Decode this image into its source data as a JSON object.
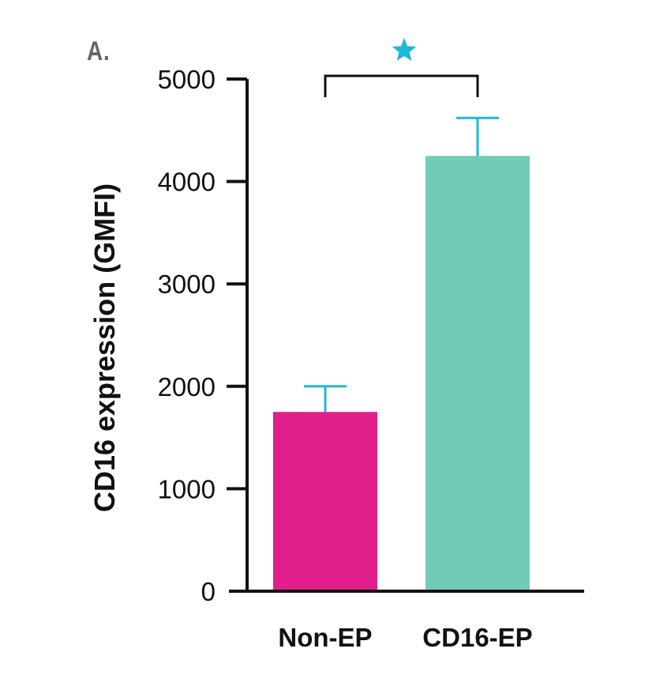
{
  "panel_label": "A.",
  "chart_data": {
    "type": "bar",
    "title": "",
    "xlabel": "",
    "ylabel": "CD16 expression (GMFI)",
    "categories": [
      "Non-EP",
      "CD16-EP"
    ],
    "values": [
      1750,
      4250
    ],
    "error_upper": [
      2000,
      4620
    ],
    "ylim": [
      0,
      5000
    ],
    "yticks": [
      0,
      1000,
      2000,
      3000,
      4000,
      5000
    ],
    "ytick_labels": [
      "0",
      "1000",
      "2000",
      "3000",
      "4000",
      "5000"
    ],
    "colors": [
      "#e01f8c",
      "#72cbb6"
    ],
    "error_bar_color": "#1fb7d4",
    "significance": {
      "between": [
        "Non-EP",
        "CD16-EP"
      ],
      "marker": "star-icon",
      "marker_color": "#1fb7d4"
    },
    "grid": false,
    "legend": "none"
  }
}
